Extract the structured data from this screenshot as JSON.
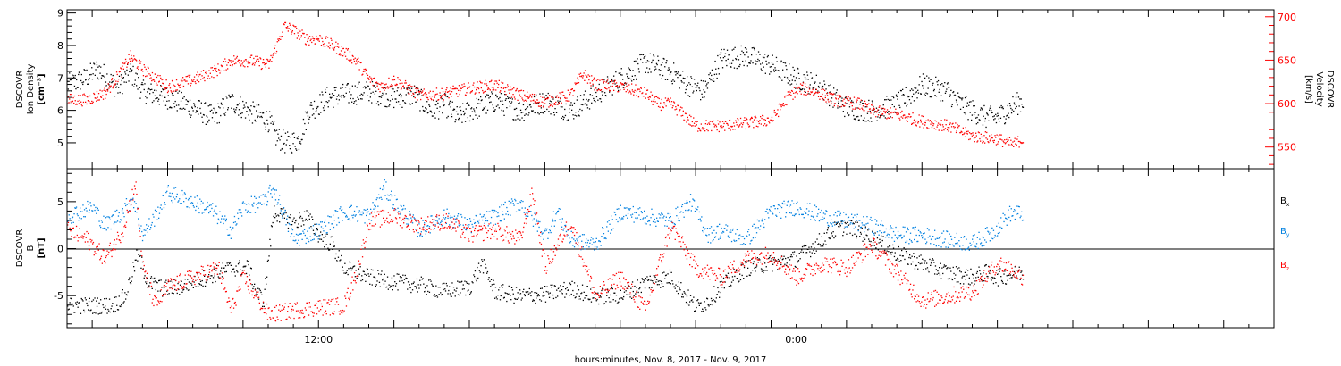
{
  "xaxis": {
    "label": "hours:minutes, Nov.  8, 2017 - Nov.  9, 2017",
    "range_hours": [
      0,
      48
    ],
    "ticks": [
      {
        "hour": 10,
        "label": "12:00"
      },
      {
        "hour": 29,
        "label": "0:00"
      }
    ],
    "data_end_hour": 38
  },
  "chart_data": [
    {
      "type": "scatter",
      "panel": "top",
      "ylabel_left": [
        "DSCOVR",
        "Ion Density",
        "[cm⁻³]"
      ],
      "ylabel_right": [
        "DSCOVR",
        "Velocity",
        "[km/s]"
      ],
      "ylim_left": [
        4.2,
        9.1
      ],
      "ylim_right": [
        525,
        708
      ],
      "yticks_left": [
        "5",
        "6",
        "7",
        "8",
        "9"
      ],
      "yticks_right": [
        "550",
        "600",
        "650",
        "700"
      ],
      "series": [
        {
          "axis": "left",
          "color": "#000000",
          "knots": [
            [
              0,
              6.8
            ],
            [
              0.7,
              7.0
            ],
            [
              1.2,
              7.3
            ],
            [
              2.0,
              6.7
            ],
            [
              2.5,
              7.2
            ],
            [
              3.0,
              6.6
            ],
            [
              4.0,
              6.4
            ],
            [
              5.0,
              6.1
            ],
            [
              5.8,
              5.8
            ],
            [
              6.5,
              6.3
            ],
            [
              7.2,
              6.0
            ],
            [
              8.0,
              5.7
            ],
            [
              8.3,
              5.2
            ],
            [
              8.7,
              5.0
            ],
            [
              9.2,
              5.1
            ],
            [
              9.6,
              6.0
            ],
            [
              10.0,
              6.2
            ],
            [
              10.3,
              6.4
            ],
            [
              11.0,
              6.5
            ],
            [
              12.0,
              6.6
            ],
            [
              13.0,
              6.4
            ],
            [
              13.8,
              6.5
            ],
            [
              14.5,
              6.0
            ],
            [
              15.0,
              6.2
            ],
            [
              15.5,
              5.8
            ],
            [
              16.0,
              6.0
            ],
            [
              17.0,
              6.3
            ],
            [
              18.0,
              6.0
            ],
            [
              19.0,
              6.3
            ],
            [
              20.0,
              6.0
            ],
            [
              21.0,
              6.5
            ],
            [
              22.0,
              7.0
            ],
            [
              23.0,
              7.5
            ],
            [
              24.0,
              7.2
            ],
            [
              24.7,
              6.8
            ],
            [
              25.3,
              6.6
            ],
            [
              26.0,
              7.6
            ],
            [
              27.0,
              7.7
            ],
            [
              28.0,
              7.4
            ],
            [
              29.0,
              7.0
            ],
            [
              29.8,
              6.8
            ],
            [
              30.3,
              6.5
            ],
            [
              31.0,
              6.1
            ],
            [
              32.0,
              6.0
            ],
            [
              33.0,
              6.2
            ],
            [
              34.0,
              6.8
            ],
            [
              35.0,
              6.6
            ],
            [
              35.5,
              6.2
            ],
            [
              36.0,
              6.0
            ],
            [
              36.5,
              5.8
            ],
            [
              37.0,
              5.8
            ],
            [
              37.7,
              6.2
            ],
            [
              38.0,
              6.3
            ]
          ]
        },
        {
          "axis": "right",
          "color": "#ff0000",
          "knots": [
            [
              0,
              605
            ],
            [
              0.8,
              605
            ],
            [
              1.5,
              613
            ],
            [
              2.2,
              640
            ],
            [
              2.5,
              655
            ],
            [
              3.0,
              640
            ],
            [
              3.5,
              630
            ],
            [
              4.0,
              620
            ],
            [
              5.0,
              628
            ],
            [
              6.0,
              640
            ],
            [
              6.5,
              650
            ],
            [
              7.3,
              650
            ],
            [
              8.0,
              645
            ],
            [
              8.3,
              665
            ],
            [
              8.6,
              690
            ],
            [
              9.0,
              685
            ],
            [
              9.5,
              675
            ],
            [
              10.0,
              675
            ],
            [
              10.5,
              668
            ],
            [
              11.0,
              660
            ],
            [
              11.5,
              650
            ],
            [
              12.0,
              628
            ],
            [
              12.5,
              620
            ],
            [
              13.0,
              628
            ],
            [
              14.0,
              610
            ],
            [
              15.0,
              612
            ],
            [
              16.0,
              618
            ],
            [
              17.0,
              622
            ],
            [
              18.0,
              610
            ],
            [
              19.0,
              602
            ],
            [
              20.0,
              610
            ],
            [
              20.5,
              635
            ],
            [
              21.0,
              622
            ],
            [
              22.0,
              620
            ],
            [
              23.0,
              612
            ],
            [
              23.5,
              600
            ],
            [
              24.0,
              600
            ],
            [
              25.0,
              575
            ],
            [
              26.0,
              575
            ],
            [
              27.0,
              578
            ],
            [
              28.0,
              582
            ],
            [
              28.7,
              610
            ],
            [
              29.2,
              618
            ],
            [
              29.7,
              615
            ],
            [
              30.5,
              605
            ],
            [
              31.5,
              600
            ],
            [
              32.0,
              592
            ],
            [
              33.0,
              588
            ],
            [
              34.0,
              580
            ],
            [
              35.0,
              575
            ],
            [
              36.0,
              563
            ],
            [
              37.0,
              560
            ],
            [
              37.6,
              553
            ],
            [
              38.0,
              560
            ]
          ]
        }
      ]
    },
    {
      "type": "scatter",
      "panel": "bottom",
      "ylabel_left": [
        "DSCOVR",
        "B",
        "[nT]"
      ],
      "ylim": [
        -8.4,
        8.5
      ],
      "yticks": [
        "-5",
        "0",
        "5"
      ],
      "zero_line": true,
      "legend_placement": "right",
      "series": [
        {
          "name": "B",
          "sub": "x",
          "color": "#000000",
          "knots": [
            [
              0,
              -6
            ],
            [
              1.0,
              -6
            ],
            [
              1.8,
              -6
            ],
            [
              2.3,
              -5
            ],
            [
              2.8,
              -0.5
            ],
            [
              3.2,
              -3.5
            ],
            [
              3.8,
              -4.2
            ],
            [
              4.5,
              -4.0
            ],
            [
              5.5,
              -3.0
            ],
            [
              6.5,
              -2.0
            ],
            [
              7.2,
              -2.0
            ],
            [
              7.5,
              -4.5
            ],
            [
              7.8,
              -5.5
            ],
            [
              8.2,
              4.0
            ],
            [
              9.0,
              2.8
            ],
            [
              9.5,
              3.5
            ],
            [
              10.0,
              1.5
            ],
            [
              10.5,
              0.5
            ],
            [
              11.0,
              -2.0
            ],
            [
              12.0,
              -3.0
            ],
            [
              13.0,
              -3.5
            ],
            [
              14.0,
              -3.8
            ],
            [
              15.0,
              -4.5
            ],
            [
              16.0,
              -4.0
            ],
            [
              16.5,
              -1.5
            ],
            [
              17.0,
              -4.5
            ],
            [
              18.0,
              -5.0
            ],
            [
              19.0,
              -4.8
            ],
            [
              20.0,
              -4.2
            ],
            [
              21.0,
              -5.0
            ],
            [
              22.0,
              -5.0
            ],
            [
              23.0,
              -3.5
            ],
            [
              24.0,
              -3.0
            ],
            [
              25.0,
              -6.2
            ],
            [
              25.5,
              -5.5
            ],
            [
              26.0,
              -4.0
            ],
            [
              27.0,
              -2.0
            ],
            [
              28.0,
              -1.5
            ],
            [
              29.0,
              -1.0
            ],
            [
              30.0,
              1.0
            ],
            [
              30.5,
              2.0
            ],
            [
              31.0,
              2.5
            ],
            [
              32.0,
              1.2
            ],
            [
              33.0,
              -0.5
            ],
            [
              34.0,
              -1.5
            ],
            [
              35.0,
              -2.5
            ],
            [
              36.0,
              -3.0
            ],
            [
              36.5,
              -2.5
            ],
            [
              37.0,
              -3.0
            ],
            [
              38.0,
              -2.5
            ]
          ]
        },
        {
          "name": "B",
          "sub": "y",
          "color": "#0080e0",
          "knots": [
            [
              0,
              3.5
            ],
            [
              1.0,
              4.5
            ],
            [
              1.5,
              2.5
            ],
            [
              2.2,
              4.0
            ],
            [
              2.6,
              5.5
            ],
            [
              3.0,
              1.5
            ],
            [
              3.5,
              3.5
            ],
            [
              4.0,
              6.0
            ],
            [
              5.0,
              5.0
            ],
            [
              5.8,
              4.0
            ],
            [
              6.5,
              2.0
            ],
            [
              7.0,
              4.5
            ],
            [
              7.8,
              5.0
            ],
            [
              8.2,
              6.5
            ],
            [
              9.0,
              1.0
            ],
            [
              10.0,
              2.0
            ],
            [
              11.0,
              4.0
            ],
            [
              12.0,
              3.5
            ],
            [
              12.6,
              6.5
            ],
            [
              13.0,
              5.0
            ],
            [
              14.0,
              2.0
            ],
            [
              15.0,
              3.5
            ],
            [
              16.0,
              2.5
            ],
            [
              17.0,
              3.5
            ],
            [
              18.0,
              5.0
            ],
            [
              19.0,
              1.5
            ],
            [
              19.5,
              4.0
            ],
            [
              20.0,
              1.0
            ],
            [
              21.0,
              0.5
            ],
            [
              22.0,
              4.0
            ],
            [
              23.0,
              3.5
            ],
            [
              24.0,
              3.0
            ],
            [
              24.8,
              5.0
            ],
            [
              25.5,
              1.5
            ],
            [
              26.0,
              2.0
            ],
            [
              27.0,
              1.0
            ],
            [
              28.0,
              4.0
            ],
            [
              29.0,
              4.5
            ],
            [
              30.0,
              3.5
            ],
            [
              31.0,
              3.0
            ],
            [
              32.0,
              2.5
            ],
            [
              33.0,
              1.5
            ],
            [
              34.0,
              1.5
            ],
            [
              35.0,
              1.0
            ],
            [
              36.0,
              0.6
            ],
            [
              36.8,
              1.8
            ],
            [
              37.5,
              3.8
            ],
            [
              38.0,
              3.8
            ]
          ]
        },
        {
          "name": "B",
          "sub": "z",
          "color": "#ff0000",
          "knots": [
            [
              0,
              2.0
            ],
            [
              0.8,
              1.0
            ],
            [
              1.5,
              -1.0
            ],
            [
              2.2,
              2.0
            ],
            [
              2.7,
              7.0
            ],
            [
              3.0,
              -2.0
            ],
            [
              3.5,
              -6.0
            ],
            [
              4.0,
              -4.0
            ],
            [
              5.0,
              -3.0
            ],
            [
              6.0,
              -2.0
            ],
            [
              6.5,
              -6.5
            ],
            [
              7.0,
              -3.0
            ],
            [
              8.0,
              -7.0
            ],
            [
              9.0,
              -6.5
            ],
            [
              10.0,
              -6.2
            ],
            [
              11.0,
              -6.0
            ],
            [
              11.5,
              -2.5
            ],
            [
              12.0,
              3.0
            ],
            [
              13.0,
              3.5
            ],
            [
              14.0,
              2.5
            ],
            [
              15.0,
              3.0
            ],
            [
              16.0,
              1.5
            ],
            [
              17.0,
              2.0
            ],
            [
              18.0,
              1.0
            ],
            [
              18.5,
              6.0
            ],
            [
              19.0,
              -2.0
            ],
            [
              20.0,
              3.0
            ],
            [
              21.0,
              -5.0
            ],
            [
              22.0,
              -3.0
            ],
            [
              23.0,
              -6.5
            ],
            [
              24.0,
              2.5
            ],
            [
              25.0,
              -2.0
            ],
            [
              26.0,
              -3.0
            ],
            [
              27.0,
              -1.0
            ],
            [
              28.0,
              -0.5
            ],
            [
              29.0,
              -3.0
            ],
            [
              30.0,
              -1.5
            ],
            [
              31.0,
              -2.0
            ],
            [
              32.0,
              0.5
            ],
            [
              33.0,
              -2.5
            ],
            [
              34.0,
              -5.5
            ],
            [
              35.0,
              -5.0
            ],
            [
              36.0,
              -4.5
            ],
            [
              37.0,
              -1.5
            ],
            [
              37.5,
              -2.0
            ],
            [
              38.0,
              -3.0
            ]
          ]
        }
      ]
    }
  ]
}
